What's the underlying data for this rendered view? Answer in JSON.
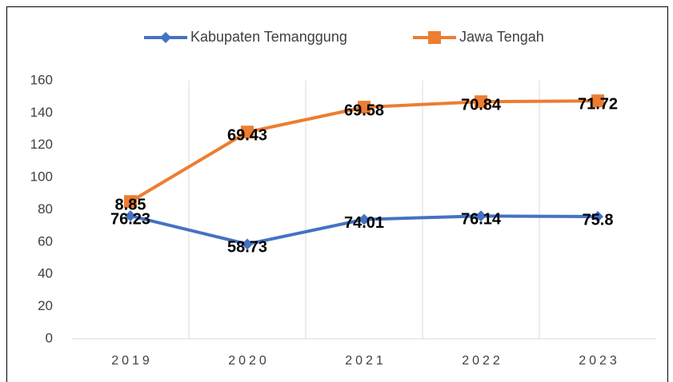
{
  "chart_data": {
    "type": "line",
    "stacked": true,
    "categories": [
      "2019",
      "2020",
      "2021",
      "2022",
      "2023"
    ],
    "series": [
      {
        "name": "Kabupaten Temanggung",
        "color": "#4472c4",
        "marker": "diamond",
        "values": [
          76.23,
          58.73,
          74.01,
          76.14,
          75.8
        ]
      },
      {
        "name": "Jawa Tengah",
        "color": "#ed7d31",
        "marker": "square",
        "values": [
          8.85,
          69.43,
          69.58,
          70.84,
          71.72
        ]
      }
    ],
    "ylim": [
      0,
      160
    ],
    "yticks": [
      0,
      20,
      40,
      60,
      80,
      100,
      120,
      140,
      160
    ],
    "legend": "top",
    "data_labels": true
  }
}
